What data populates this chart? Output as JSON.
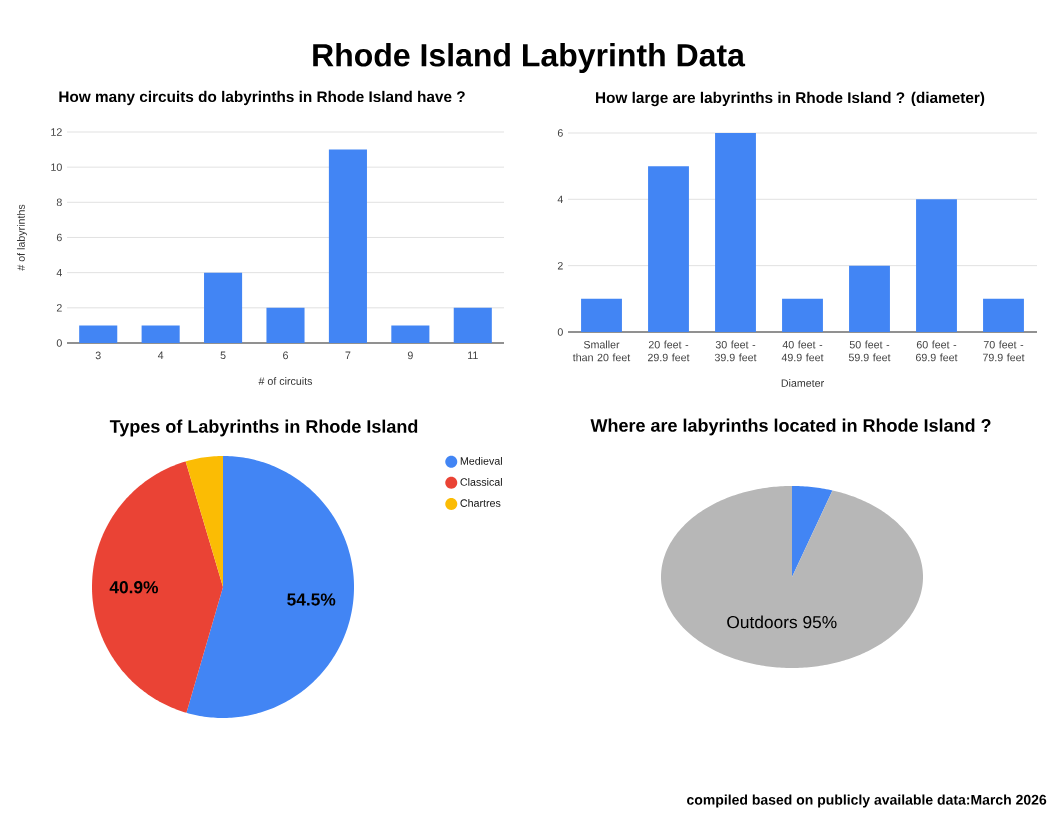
{
  "chart_data": [
    {
      "type": "other",
      "title": "Rhode Island Labyrinth Data",
      "annotations": [
        "compiled based on publicly available data:March 2026"
      ]
    },
    {
      "type": "bar",
      "title": "How many circuits do labyrinths in Rhode Island have ?",
      "xlabel": "# of circuits",
      "ylabel": "# of labyrinths",
      "categories": [
        "3",
        "4",
        "5",
        "6",
        "7",
        "9",
        "11"
      ],
      "values": [
        1,
        1,
        4,
        2,
        11,
        1,
        2
      ],
      "color": "#4285f4",
      "ylim": [
        0,
        12
      ],
      "yticks": [
        0,
        2,
        4,
        6,
        8,
        10,
        12
      ],
      "grid": "y"
    },
    {
      "type": "bar",
      "title": "How large are labyrinths in Rhode Island ? (diameter)",
      "xlabel": "Diameter",
      "categories": [
        "Smaller than 20 feet",
        "20 feet - 29.9 feet",
        "30 feet - 39.9 feet",
        "40 feet - 49.9 feet",
        "50 feet - 59.9 feet",
        "60 feet - 69.9 feet",
        "70 feet - 79.9 feet"
      ],
      "values": [
        1,
        5,
        6,
        1,
        2,
        4,
        1
      ],
      "color": "#4285f4",
      "ylim": [
        0,
        6
      ],
      "yticks": [
        0,
        2,
        4,
        6
      ],
      "grid": "y"
    },
    {
      "type": "pie",
      "title": "Types of Labyrinths in Rhode Island",
      "categories": [
        "Medieval",
        "Classical",
        "Chartres"
      ],
      "values": [
        54.5,
        40.9,
        4.6
      ],
      "colors": [
        "#4285f4",
        "#ea4335",
        "#fbbc04"
      ],
      "value_labels": [
        "54.5%",
        "40.9%",
        null
      ],
      "legend": "top right"
    },
    {
      "type": "pie",
      "title": "Where are labyrinths located in Rhode Island ?",
      "categories": [
        null,
        "Outdoors"
      ],
      "values": [
        5,
        95
      ],
      "colors": [
        "#4285f4",
        "#b7b7b7"
      ],
      "value_labels": [
        null,
        "95%"
      ],
      "legend": false
    }
  ]
}
